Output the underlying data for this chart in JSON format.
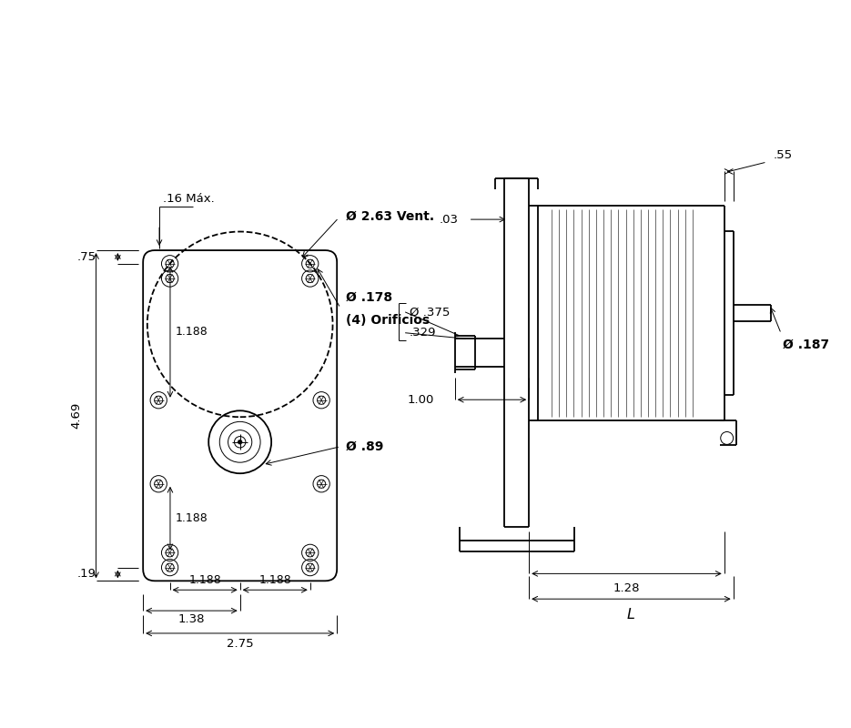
{
  "bg_color": "#ffffff",
  "line_color": "#000000",
  "fig_width": 9.35,
  "fig_height": 8.0,
  "annotations": {
    "dim_16_max": ".16 Máx.",
    "dim_263_vent": "Ø 2.63 Vent.",
    "dim_178": "Ø .178",
    "dim_4orificios": "(4) Orificios",
    "dim_89": "Ø .89",
    "dim_469": "4.69",
    "dim_1188a": "1.188",
    "dim_1188b": "1.188",
    "dim_1188c": "1.188",
    "dim_1188d": "1.188",
    "dim_075": ".75",
    "dim_019": ".19",
    "dim_138": "1.38",
    "dim_275": "2.75",
    "dim_055": ".55",
    "dim_187": "Ø .187",
    "dim_003": ".03",
    "dim_375": "Ø .375",
    "dim_329": ".329",
    "dim_100": "1.00",
    "dim_128": "1.28",
    "dim_L": "L"
  }
}
